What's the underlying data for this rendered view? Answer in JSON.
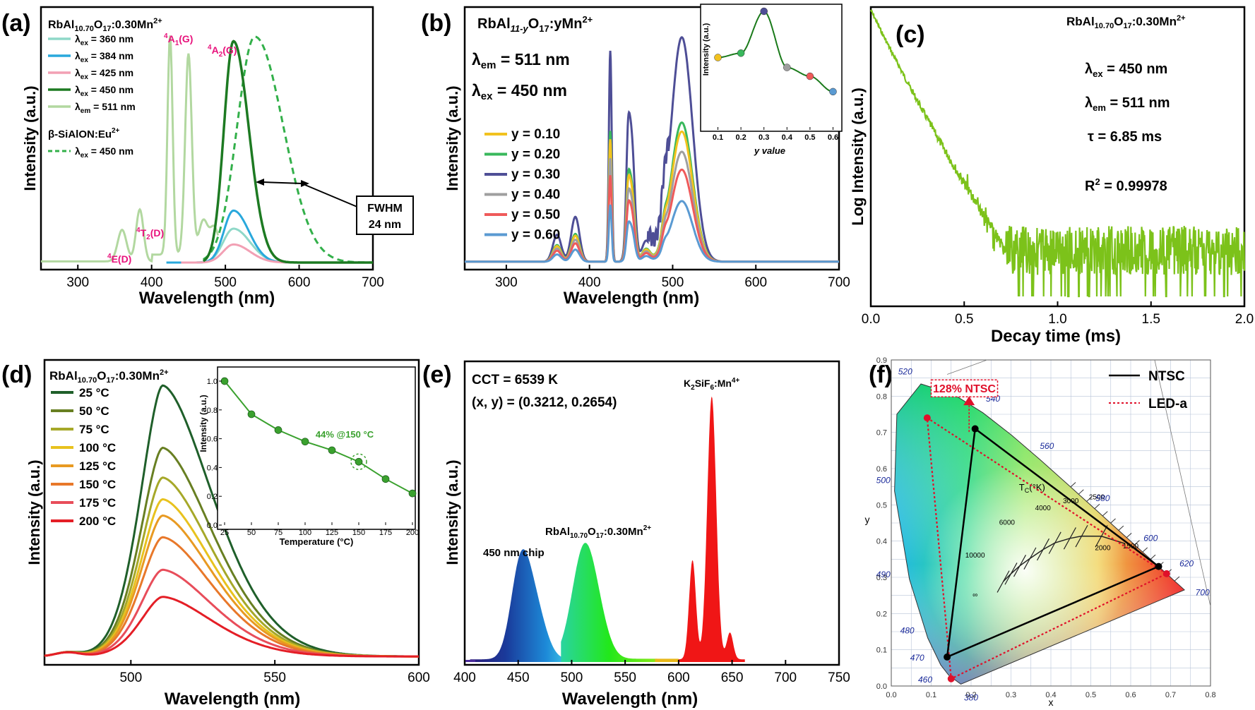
{
  "colors": {
    "a": [
      "#8fd8c8",
      "#29a8dc",
      "#f2a0b4",
      "#1d7a22",
      "#b2d8a0"
    ],
    "a_ref": "#33b04a",
    "b": [
      "#f2c21f",
      "#39b85c",
      "#4e4e96",
      "#9f9f9f",
      "#ef5a5a",
      "#5a9ad2"
    ],
    "c": "#7cc21a",
    "d": [
      "#1f5f2a",
      "#687f22",
      "#a6a829",
      "#e8c21e",
      "#e89a22",
      "#e8782a",
      "#e84d5a",
      "#e41e26"
    ],
    "d_inset": "#3aa12e",
    "f_ntsc": "#000000",
    "f_led": "#e0102a",
    "annot": "#e8127c"
  },
  "panels": {
    "a": {
      "label": "(a)",
      "compound_base": "RbAl",
      "compound_sub1": "10.70",
      "compound_mid": "O",
      "compound_sub2": "17",
      "compound_end": ":0.30Mn",
      "compound_sup": "2+",
      "legend_base": [
        "λ",
        "λ",
        "λ",
        "λ",
        "λ"
      ],
      "legend_sub": [
        "ex",
        "ex",
        "ex",
        "ex",
        "em"
      ],
      "legend_val": [
        " = 360 nm",
        " = 384 nm",
        " = 425 nm",
        " = 450 nm",
        " = 511 nm"
      ],
      "ref_name": "β-SiAlON:Eu",
      "ref_sup": "2+",
      "ref_legend_base": "λ",
      "ref_legend_sub": "ex",
      "ref_legend_val": " = 450 nm",
      "annot_levels": [
        {
          "pre": "4",
          "state": "E(D)"
        },
        {
          "pre": "4",
          "state": "T",
          "sub": "2",
          "post": "(D)"
        },
        {
          "pre": "4",
          "state": "A",
          "sub": "1",
          "post": "(G)"
        },
        {
          "pre": "4",
          "state": "A",
          "sub": "2",
          "post": "(G)"
        }
      ],
      "fwhm_label": "FWHM",
      "fwhm_value": "24 nm"
    },
    "b": {
      "label": "(b)",
      "formula_base": "RbAl",
      "formula_sub": "11-y",
      "formula_mid": "O",
      "formula_sub2": "17",
      "formula_end": ":yMn",
      "formula_sup": "2+",
      "em_base": "λ",
      "em_sub": "em",
      "em_val": " = 511 nm",
      "ex_base": "λ",
      "ex_sub": "ex",
      "ex_val": " = 450 nm",
      "legend": [
        "y = 0.10",
        "y = 0.20",
        "y = 0.30",
        "y = 0.40",
        "y = 0.50",
        "y = 0.60"
      ],
      "inset_ylabel": "Intensity (a.u.)",
      "inset_xlabel": "y value"
    },
    "c": {
      "label": "(c)",
      "compound_base": "RbAl",
      "compound_sub1": "10.70",
      "compound_mid": "O",
      "compound_sub2": "17",
      "compound_end": ":0.30Mn",
      "compound_sup": "2+",
      "ex_base": "λ",
      "ex_sub": "ex",
      "ex_val": " =  450 nm",
      "em_base": "λ",
      "em_sub": "em",
      "em_val": " =  511 nm",
      "tau": "τ  = 6.85 ms",
      "r2_base": "R",
      "r2_sup": "2",
      "r2_val": " = 0.99978"
    },
    "d": {
      "label": "(d)",
      "compound_base": "RbAl",
      "compound_sub1": "10.70",
      "compound_mid": "O",
      "compound_sub2": "17",
      "compound_end": ":0.30Mn",
      "compound_sup": "2+",
      "legend": [
        "25 °C",
        "50 °C",
        "75 °C",
        "100 °C",
        "125 °C",
        "150 °C",
        "175 °C",
        "200 °C"
      ],
      "inset_ylabel": "Intensity (a.u.)",
      "inset_xlabel": "Temperature (°C)",
      "inset_annot": "44% @150 °C"
    },
    "e": {
      "label": "(e)",
      "cct": "CCT = 6539 K",
      "xy": "(x, y) = (0.3212, 0.2654)",
      "ksf_base": "K",
      "ksf_sub1": "2",
      "ksf_mid": "SiF",
      "ksf_sub2": "6",
      "ksf_end": ":Mn",
      "ksf_sup": "4+",
      "rb_base": "RbAl",
      "rb_sub1": "10.70",
      "rb_mid": "O",
      "rb_sub2": "17",
      "rb_end": ":0.30Mn",
      "rb_sup": "2+",
      "chip": "450 nm chip"
    },
    "f": {
      "label": "(f)",
      "ntsc_legend": "NTSC",
      "led_legend": "LED-a",
      "ntsc_ratio": "128% NTSC",
      "ylabel": "y",
      "xlabel": "x",
      "tc_base": "T",
      "tc_sub": "C",
      "tc_unit": "(°K)",
      "cct_labels": [
        "10000",
        "6000",
        "4000",
        "3000",
        "2500",
        "2000",
        "1500",
        "∞"
      ],
      "wl_labels": [
        "380",
        "460",
        "470",
        "480",
        "490",
        "500",
        "520",
        "540",
        "560",
        "580",
        "600",
        "620",
        "700"
      ]
    }
  },
  "chart_data": [
    {
      "panel": "a",
      "type": "line",
      "xlabel": "Wavelength (nm)",
      "ylabel": "Intensity (a.u.)",
      "xlim": [
        250,
        700
      ],
      "xticks": [
        "300",
        "400",
        "500",
        "600",
        "700"
      ],
      "series": [
        {
          "name": "λex = 360 nm",
          "peaks": [
            [
              511,
              0.15,
              14
            ]
          ],
          "range": [
            460,
            700
          ]
        },
        {
          "name": "λex = 384 nm",
          "peaks": [
            [
              511,
              0.23,
              13
            ]
          ],
          "range": [
            420,
            700
          ]
        },
        {
          "name": "λex = 425 nm",
          "peaks": [
            [
              511,
              0.08,
              14
            ]
          ],
          "range": [
            440,
            700
          ]
        },
        {
          "name": "λex = 450 nm",
          "peaks": [
            [
              511,
              0.98,
              13
            ]
          ],
          "range": [
            470,
            700
          ]
        },
        {
          "name": "λem = 511 nm",
          "peaks": [
            [
              360,
              0.14,
              6
            ],
            [
              384,
              0.23,
              5
            ],
            [
              425,
              0.97,
              3.5
            ],
            [
              450,
              0.89,
              4.5
            ],
            [
              470,
              0.15,
              6
            ],
            [
              485,
              0.12,
              6
            ]
          ],
          "range": [
            250,
            490
          ]
        },
        {
          "name": "β-SiAlON:Eu2+ λex = 450 nm",
          "peaks": [
            [
              540,
              1.0,
              24
            ]
          ],
          "range": [
            470,
            700
          ]
        }
      ]
    },
    {
      "panel": "b",
      "type": "line",
      "xlabel": "Wavelength (nm)",
      "ylabel": "Intensity (a.u.)",
      "xlim": [
        250,
        700
      ],
      "xticks": [
        "300",
        "400",
        "500",
        "600",
        "700"
      ],
      "y_values": [
        0.1,
        0.2,
        0.3,
        0.4,
        0.5,
        0.6
      ],
      "relative_intensity": [
        0.58,
        0.62,
        1.0,
        0.49,
        0.41,
        0.27
      ],
      "peaks_wavelength": [
        361,
        383,
        425,
        450,
        511
      ]
    },
    {
      "panel": "c",
      "type": "line",
      "xlabel": "Decay time (ms)",
      "ylabel": "Log Intensity (a.u.)",
      "xlim": [
        0.0,
        2.0
      ],
      "xticks": [
        "0.0",
        "0.5",
        "1.0",
        "1.5",
        "2.0"
      ],
      "tau_ms": 6.85
    },
    {
      "panel": "d",
      "type": "line",
      "xlabel": "Wavelength (nm)",
      "ylabel": "Intensity (a.u.)",
      "xlim": [
        470,
        600
      ],
      "xticks": [
        "500",
        "550",
        "600"
      ],
      "peak_nm": 511,
      "temperatures": [
        25,
        50,
        75,
        100,
        125,
        150,
        175,
        200
      ],
      "relative_intensity": [
        1.0,
        0.77,
        0.66,
        0.58,
        0.52,
        0.44,
        0.32,
        0.22
      ],
      "inset": {
        "x": [
          25,
          50,
          75,
          100,
          125,
          150,
          175,
          200
        ],
        "y": [
          1.0,
          0.77,
          0.66,
          0.58,
          0.52,
          0.44,
          0.32,
          0.22
        ],
        "xticks": [
          "25",
          "50",
          "75",
          "100",
          "125",
          "150",
          "175",
          "200"
        ],
        "yticks": [
          "0.0",
          "0.2",
          "0.4",
          "0.6",
          "0.8",
          "1.0"
        ]
      }
    },
    {
      "panel": "e",
      "type": "area",
      "xlabel": "Wavelength (nm)",
      "ylabel": "Intensity (a.u.)",
      "xlim": [
        400,
        750
      ],
      "xticks": [
        "400",
        "450",
        "500",
        "550",
        "600",
        "650",
        "700",
        "750"
      ],
      "peaks": [
        [
          452,
          0.37
        ],
        [
          511,
          0.43
        ],
        [
          613,
          0.38
        ],
        [
          631,
          1.0
        ],
        [
          648,
          0.1
        ]
      ]
    },
    {
      "panel": "f",
      "type": "scatter",
      "xlabel": "x",
      "ylabel": "y",
      "xlim": [
        0.0,
        0.8
      ],
      "ylim": [
        0.0,
        0.9
      ],
      "xticks": [
        "0.0",
        "0.1",
        "0.2",
        "0.3",
        "0.4",
        "0.5",
        "0.6",
        "0.7",
        "0.8"
      ],
      "yticks": [
        "0.0",
        "0.1",
        "0.2",
        "0.3",
        "0.4",
        "0.5",
        "0.6",
        "0.7",
        "0.8",
        "0.9"
      ],
      "ntsc_triangle": [
        [
          0.67,
          0.33
        ],
        [
          0.21,
          0.71
        ],
        [
          0.14,
          0.08
        ]
      ],
      "led_triangle": [
        [
          0.69,
          0.31
        ],
        [
          0.09,
          0.74
        ],
        [
          0.15,
          0.02
        ]
      ]
    }
  ]
}
